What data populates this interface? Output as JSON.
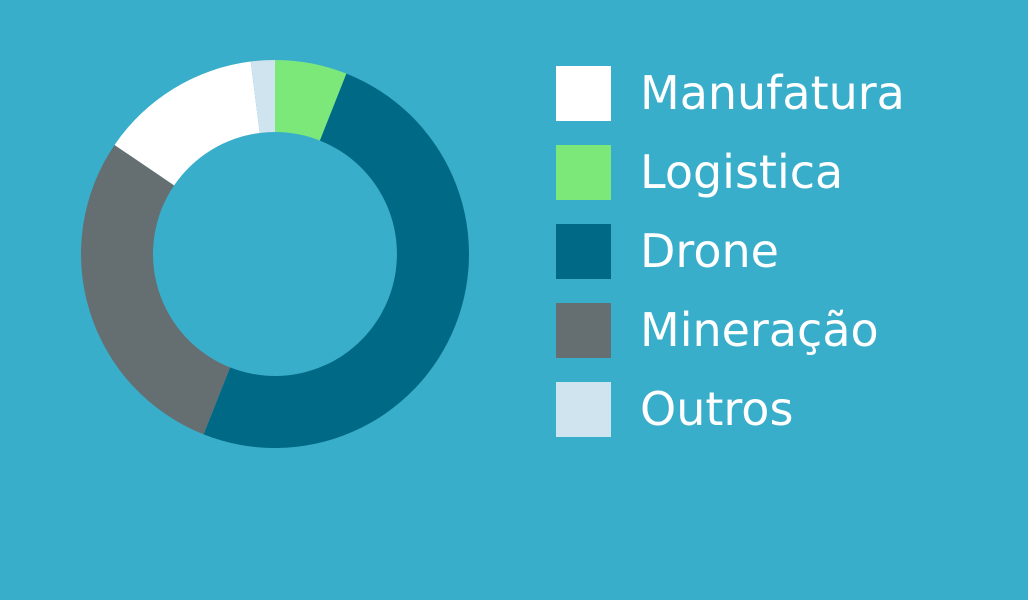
{
  "chart_data": {
    "type": "pie",
    "variant": "donut",
    "title": "",
    "categories": [
      "Manufatura",
      "Logistica",
      "Drone",
      "Mineração",
      "Outros"
    ],
    "values": [
      13.5,
      6,
      50,
      28.5,
      2
    ],
    "unit": "%",
    "colors": [
      "#ffffff",
      "#7de87a",
      "#006a86",
      "#656f71",
      "#cfe4ee"
    ],
    "slice_order_clockwise_from_top": [
      "Logistica",
      "Drone",
      "Mineração",
      "Manufatura",
      "Outros"
    ],
    "legend_position": "right"
  },
  "background_color": "#38aecb"
}
